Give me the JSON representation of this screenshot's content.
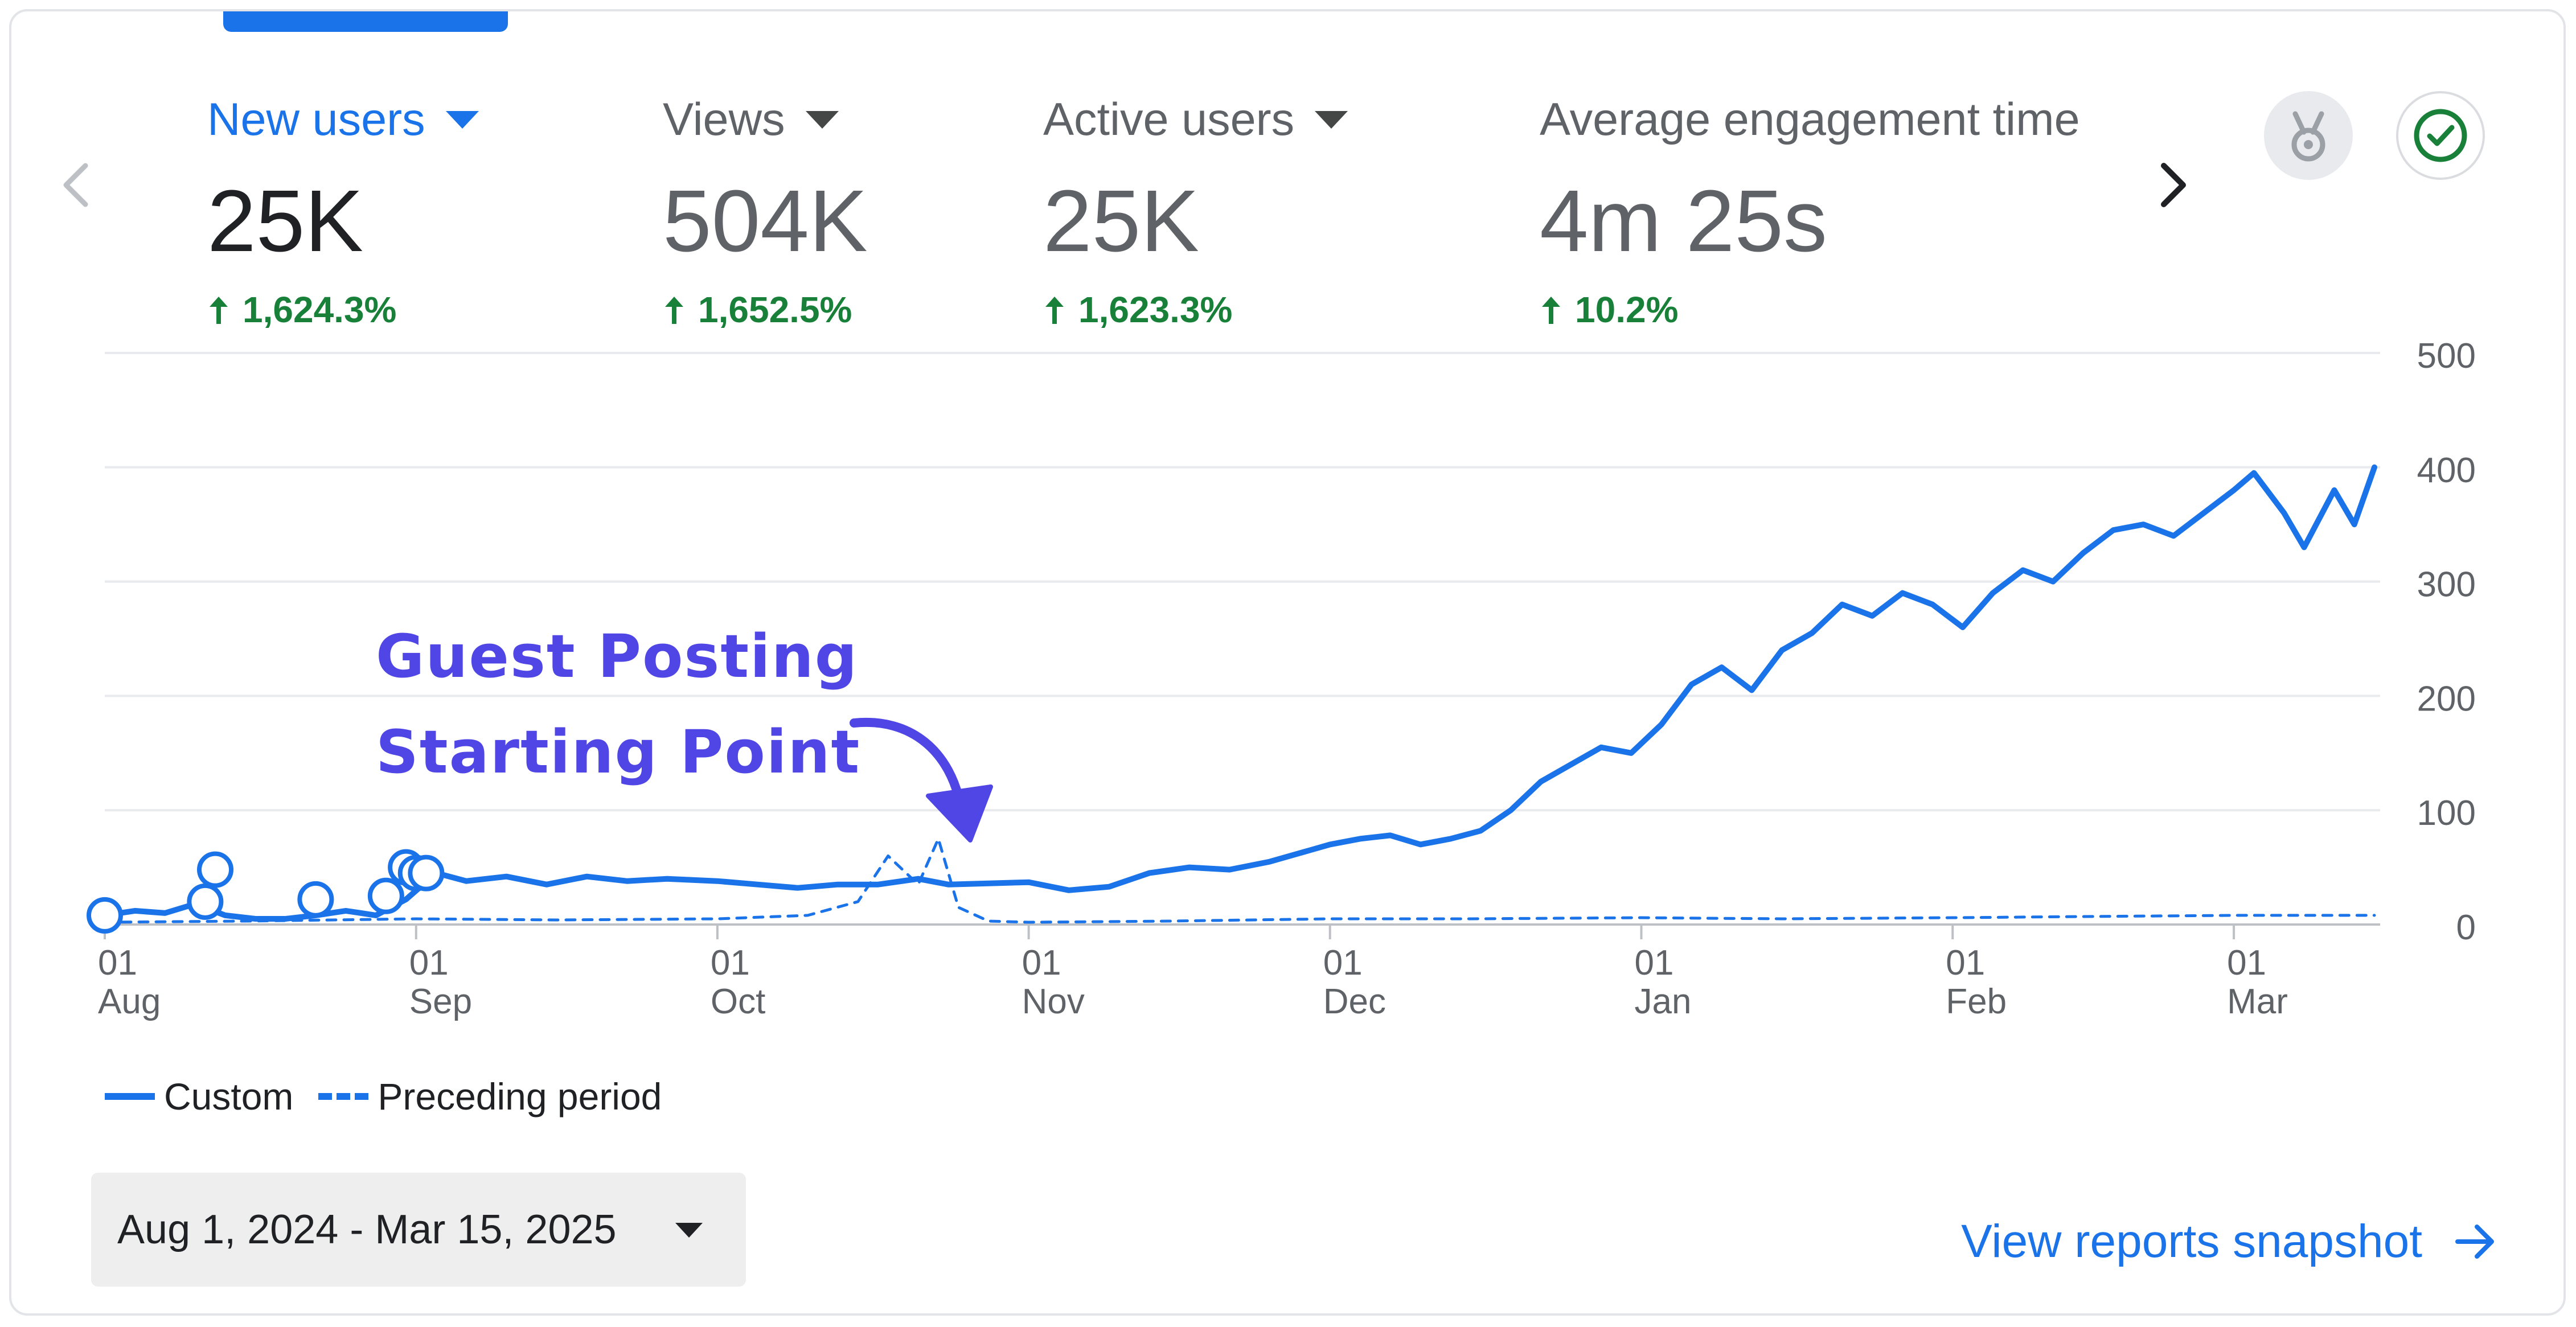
{
  "metrics": [
    {
      "label": "New users",
      "value": "25K",
      "delta": "1,624.3%",
      "active": true
    },
    {
      "label": "Views",
      "value": "504K",
      "delta": "1,652.5%",
      "active": false
    },
    {
      "label": "Active users",
      "value": "25K",
      "delta": "1,623.3%",
      "active": false
    },
    {
      "label": "Average engagement time",
      "value": "4m 25s",
      "delta": "10.2%",
      "active": false
    }
  ],
  "icons": {
    "prev": "chevron-left-icon",
    "next": "chevron-right-icon",
    "insights": "medal-icon",
    "status": "check-circle-icon"
  },
  "colors": {
    "accent": "#1a73e8",
    "positive": "#188038",
    "annotation": "#4f46e5"
  },
  "annotation": {
    "line1": "Guest Posting",
    "line2": "Starting Point"
  },
  "legend": {
    "custom": "Custom",
    "preceding": "Preceding period"
  },
  "date_range": "Aug 1, 2024 - Mar 15, 2025",
  "snapshot_link": "View reports snapshot",
  "chart_data": {
    "type": "line",
    "title": "",
    "xlabel": "",
    "ylabel": "",
    "ylim": [
      0,
      500
    ],
    "yticks": [
      0,
      100,
      200,
      300,
      400,
      500
    ],
    "grid": true,
    "legend_position": "bottom-left",
    "x_start": "2024-08-01",
    "x_end": "2025-03-15",
    "x_ticks": [
      {
        "day": "01",
        "month": "Aug",
        "date": "2024-08-01"
      },
      {
        "day": "01",
        "month": "Sep",
        "date": "2024-09-01"
      },
      {
        "day": "01",
        "month": "Oct",
        "date": "2024-10-01"
      },
      {
        "day": "01",
        "month": "Nov",
        "date": "2024-11-01"
      },
      {
        "day": "01",
        "month": "Dec",
        "date": "2024-12-01"
      },
      {
        "day": "01",
        "month": "Jan",
        "date": "2025-01-01"
      },
      {
        "day": "01",
        "month": "Feb",
        "date": "2025-02-01"
      },
      {
        "day": "01",
        "month": "Mar",
        "date": "2025-03-01"
      }
    ],
    "series": [
      {
        "name": "Custom",
        "style": "solid",
        "points": [
          [
            "2024-08-01",
            8
          ],
          [
            "2024-08-04",
            12
          ],
          [
            "2024-08-07",
            10
          ],
          [
            "2024-08-10",
            18
          ],
          [
            "2024-08-13",
            8
          ],
          [
            "2024-08-16",
            5
          ],
          [
            "2024-08-19",
            5
          ],
          [
            "2024-08-22",
            8
          ],
          [
            "2024-08-25",
            12
          ],
          [
            "2024-08-28",
            8
          ],
          [
            "2024-08-31",
            22
          ],
          [
            "2024-09-03",
            45
          ],
          [
            "2024-09-06",
            38
          ],
          [
            "2024-09-10",
            42
          ],
          [
            "2024-09-14",
            35
          ],
          [
            "2024-09-18",
            42
          ],
          [
            "2024-09-22",
            38
          ],
          [
            "2024-09-26",
            40
          ],
          [
            "2024-10-01",
            38
          ],
          [
            "2024-10-05",
            35
          ],
          [
            "2024-10-09",
            32
          ],
          [
            "2024-10-13",
            35
          ],
          [
            "2024-10-17",
            35
          ],
          [
            "2024-10-21",
            40
          ],
          [
            "2024-10-24",
            35
          ],
          [
            "2024-10-28",
            36
          ],
          [
            "2024-11-01",
            37
          ],
          [
            "2024-11-05",
            30
          ],
          [
            "2024-11-09",
            33
          ],
          [
            "2024-11-13",
            45
          ],
          [
            "2024-11-17",
            50
          ],
          [
            "2024-11-21",
            48
          ],
          [
            "2024-11-25",
            55
          ],
          [
            "2024-11-29",
            65
          ],
          [
            "2024-12-01",
            70
          ],
          [
            "2024-12-04",
            75
          ],
          [
            "2024-12-07",
            78
          ],
          [
            "2024-12-10",
            70
          ],
          [
            "2024-12-13",
            75
          ],
          [
            "2024-12-16",
            82
          ],
          [
            "2024-12-19",
            100
          ],
          [
            "2024-12-22",
            125
          ],
          [
            "2024-12-25",
            140
          ],
          [
            "2024-12-28",
            155
          ],
          [
            "2024-12-31",
            150
          ],
          [
            "2025-01-03",
            175
          ],
          [
            "2025-01-06",
            210
          ],
          [
            "2025-01-09",
            225
          ],
          [
            "2025-01-12",
            205
          ],
          [
            "2025-01-15",
            240
          ],
          [
            "2025-01-18",
            255
          ],
          [
            "2025-01-21",
            280
          ],
          [
            "2025-01-24",
            270
          ],
          [
            "2025-01-27",
            290
          ],
          [
            "2025-01-30",
            280
          ],
          [
            "2025-02-02",
            260
          ],
          [
            "2025-02-05",
            290
          ],
          [
            "2025-02-08",
            310
          ],
          [
            "2025-02-11",
            300
          ],
          [
            "2025-02-14",
            325
          ],
          [
            "2025-02-17",
            345
          ],
          [
            "2025-02-20",
            350
          ],
          [
            "2025-02-23",
            340
          ],
          [
            "2025-02-26",
            360
          ],
          [
            "2025-03-01",
            380
          ],
          [
            "2025-03-03",
            395
          ],
          [
            "2025-03-06",
            360
          ],
          [
            "2025-03-08",
            330
          ],
          [
            "2025-03-11",
            380
          ],
          [
            "2025-03-13",
            350
          ],
          [
            "2025-03-15",
            400
          ]
        ]
      },
      {
        "name": "Preceding period",
        "style": "dashed",
        "points": [
          [
            "2024-08-01",
            2
          ],
          [
            "2024-08-15",
            3
          ],
          [
            "2024-09-01",
            5
          ],
          [
            "2024-09-15",
            4
          ],
          [
            "2024-10-01",
            5
          ],
          [
            "2024-10-10",
            8
          ],
          [
            "2024-10-15",
            20
          ],
          [
            "2024-10-18",
            60
          ],
          [
            "2024-10-21",
            35
          ],
          [
            "2024-10-23",
            75
          ],
          [
            "2024-10-25",
            15
          ],
          [
            "2024-10-28",
            3
          ],
          [
            "2024-11-01",
            2
          ],
          [
            "2024-11-15",
            3
          ],
          [
            "2024-12-01",
            5
          ],
          [
            "2024-12-15",
            5
          ],
          [
            "2025-01-01",
            6
          ],
          [
            "2025-01-15",
            5
          ],
          [
            "2025-02-01",
            6
          ],
          [
            "2025-02-15",
            7
          ],
          [
            "2025-03-01",
            8
          ],
          [
            "2025-03-15",
            8
          ]
        ]
      }
    ],
    "markers": [
      {
        "date": "2024-08-01",
        "value": 8
      },
      {
        "date": "2024-08-11",
        "value": 20
      },
      {
        "date": "2024-08-12",
        "value": 48
      },
      {
        "date": "2024-08-22",
        "value": 22
      },
      {
        "date": "2024-08-29",
        "value": 25
      },
      {
        "date": "2024-08-31",
        "value": 50
      },
      {
        "date": "2024-09-01",
        "value": 45
      },
      {
        "date": "2024-09-02",
        "value": 45
      }
    ]
  }
}
